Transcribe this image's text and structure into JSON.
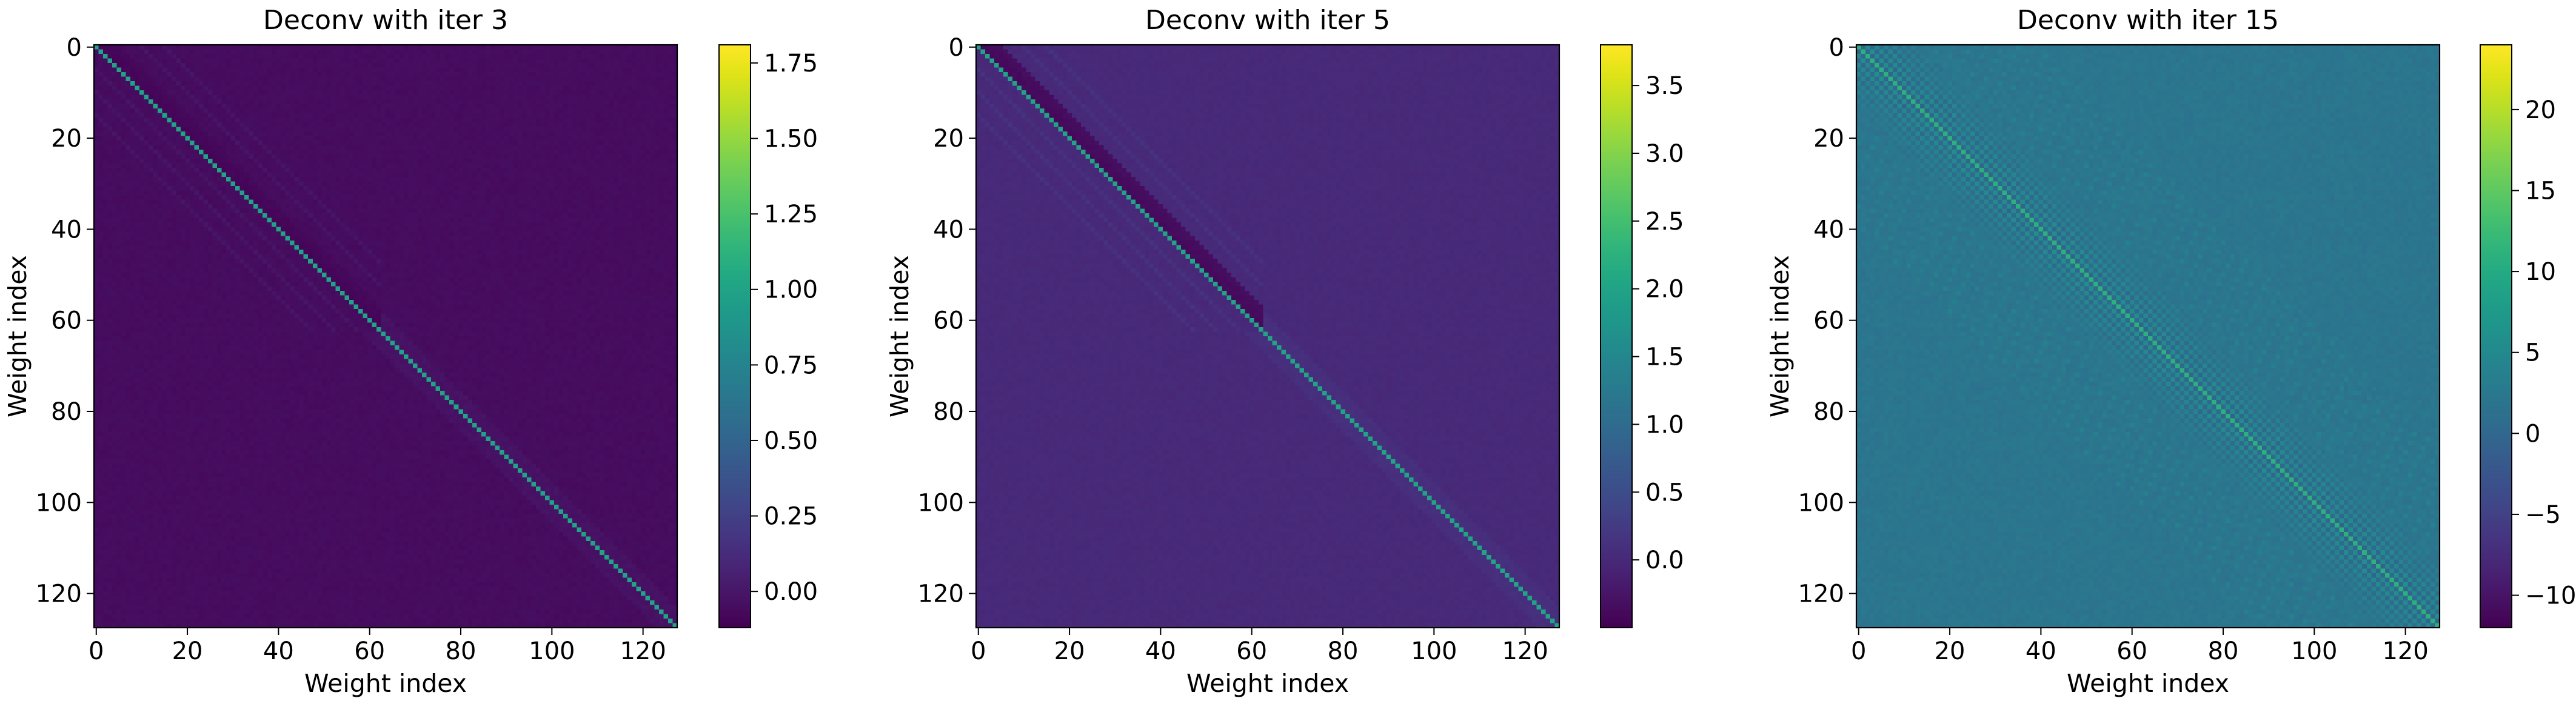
{
  "chart_data": [
    {
      "type": "heatmap",
      "title": "Deconv with iter 3",
      "xlabel": "Weight index",
      "ylabel": "Weight index",
      "matrix_size": 128,
      "x_ticks": [
        0,
        20,
        40,
        60,
        80,
        100,
        120
      ],
      "y_ticks": [
        0,
        20,
        40,
        60,
        80,
        100,
        120
      ],
      "xlim": [
        0,
        127
      ],
      "ylim": [
        127,
        0
      ],
      "colormap": "viridis",
      "vmin": -0.12,
      "vmax": 1.81,
      "background_value": -0.06,
      "diagonal_value": 1.0,
      "cross_talk": {
        "block_end": 63,
        "band_min": -0.1,
        "band_max": 0.0
      },
      "colorbar": {
        "ticks": [
          0.0,
          0.25,
          0.5,
          0.75,
          1.0,
          1.25,
          1.5,
          1.75
        ],
        "tick_labels": [
          "0.00",
          "0.25",
          "0.50",
          "0.75",
          "1.00",
          "1.25",
          "1.50",
          "1.75"
        ]
      }
    },
    {
      "type": "heatmap",
      "title": "Deconv with iter 5",
      "xlabel": "Weight index",
      "ylabel": "Weight index",
      "matrix_size": 128,
      "x_ticks": [
        0,
        20,
        40,
        60,
        80,
        100,
        120
      ],
      "y_ticks": [
        0,
        20,
        40,
        60,
        80,
        100,
        120
      ],
      "xlim": [
        0,
        127
      ],
      "ylim": [
        127,
        0
      ],
      "colormap": "viridis",
      "vmin": -0.5,
      "vmax": 3.8,
      "background_value": 0.0,
      "diagonal_value": 2.0,
      "cross_talk": {
        "block_end": 63,
        "band_min": -0.4,
        "band_max": 0.15
      },
      "colorbar": {
        "ticks": [
          0.0,
          0.5,
          1.0,
          1.5,
          2.0,
          2.5,
          3.0,
          3.5
        ],
        "tick_labels": [
          "0.0",
          "0.5",
          "1.0",
          "1.5",
          "2.0",
          "2.5",
          "3.0",
          "3.5"
        ]
      }
    },
    {
      "type": "heatmap",
      "title": "Deconv with iter 15",
      "xlabel": "Weight index",
      "ylabel": "Weight index",
      "matrix_size": 128,
      "x_ticks": [
        0,
        20,
        40,
        60,
        80,
        100,
        120
      ],
      "y_ticks": [
        0,
        20,
        40,
        60,
        80,
        100,
        120
      ],
      "xlim": [
        0,
        127
      ],
      "ylim": [
        127,
        0
      ],
      "colormap": "viridis",
      "vmin": -12,
      "vmax": 24,
      "background_value": 2.0,
      "diagonal_value": 11.0,
      "cross_talk": {
        "block_end": 63,
        "band_min": -1.5,
        "band_max": 6.0
      },
      "colorbar": {
        "ticks": [
          -10,
          -5,
          0,
          5,
          10,
          15,
          20
        ],
        "tick_labels": [
          "−10",
          "−5",
          "0",
          "5",
          "10",
          "15",
          "20"
        ]
      }
    }
  ]
}
